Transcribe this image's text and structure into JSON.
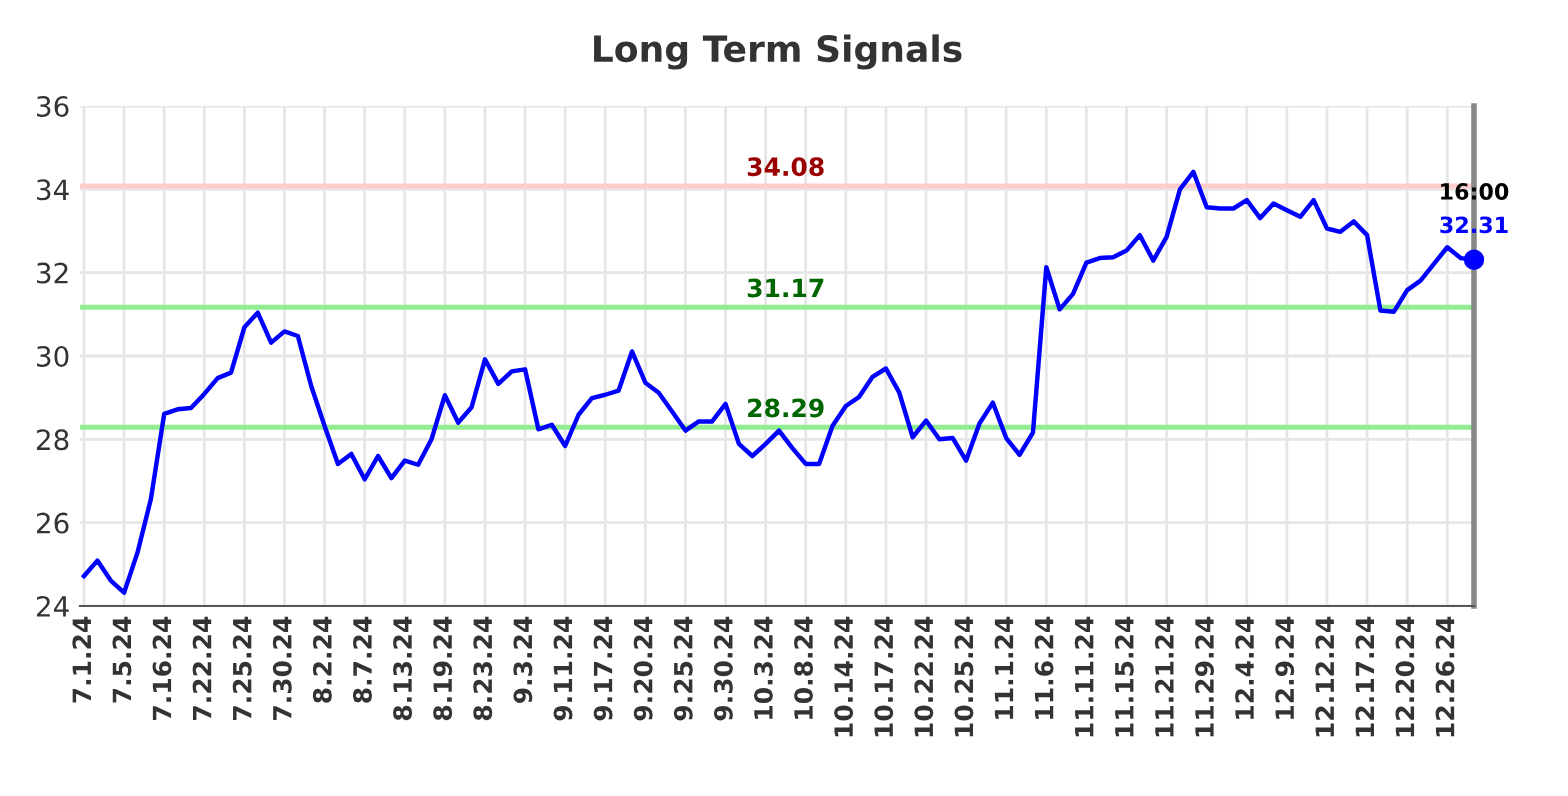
{
  "chart_data": {
    "type": "line",
    "title": "Long Term Signals",
    "categories": [
      "7.1.24",
      null,
      null,
      "7.5.24",
      null,
      null,
      "7.16.24",
      null,
      null,
      "7.22.24",
      null,
      null,
      "7.25.24",
      null,
      null,
      "7.30.24",
      null,
      null,
      "8.2.24",
      null,
      null,
      "8.7.24",
      null,
      null,
      "8.13.24",
      null,
      null,
      "8.19.24",
      null,
      null,
      "8.23.24",
      null,
      null,
      "9.3.24",
      null,
      null,
      "9.11.24",
      null,
      null,
      "9.17.24",
      null,
      null,
      "9.20.24",
      null,
      null,
      "9.25.24",
      null,
      null,
      "9.30.24",
      null,
      null,
      "10.3.24",
      null,
      null,
      "10.8.24",
      null,
      null,
      "10.14.24",
      null,
      null,
      "10.17.24",
      null,
      null,
      "10.22.24",
      null,
      null,
      "10.25.24",
      null,
      null,
      "11.1.24",
      null,
      null,
      "11.6.24",
      null,
      null,
      "11.11.24",
      null,
      null,
      "11.15.24",
      null,
      null,
      "11.21.24",
      null,
      null,
      "11.29.24",
      null,
      null,
      "12.4.24",
      null,
      null,
      "12.9.24",
      null,
      null,
      "12.12.24",
      null,
      null,
      "12.17.24",
      null,
      null,
      "12.20.24",
      null,
      null,
      "12.26.24",
      null,
      null
    ],
    "series": [
      {
        "color": "#0000ff",
        "values": [
          24.72,
          25.09,
          24.61,
          24.32,
          25.28,
          26.56,
          28.61,
          28.72,
          28.75,
          29.09,
          29.47,
          29.6,
          30.69,
          31.04,
          30.32,
          30.59,
          30.48,
          29.28,
          28.32,
          27.41,
          27.65,
          27.04,
          27.6,
          27.07,
          27.49,
          27.39,
          28.0,
          29.06,
          28.4,
          28.77,
          29.92,
          29.33,
          29.63,
          29.68,
          28.24,
          28.35,
          27.84,
          28.59,
          28.99,
          29.07,
          29.17,
          30.11,
          29.36,
          29.12,
          28.67,
          28.21,
          28.43,
          28.43,
          28.85,
          27.89,
          27.6,
          27.89,
          28.21,
          27.79,
          27.41,
          27.41,
          28.32,
          28.8,
          29.02,
          29.5,
          29.7,
          29.12,
          28.05,
          28.45,
          28.0,
          28.03,
          27.49,
          28.38,
          28.88,
          28.03,
          27.63,
          28.16,
          32.13,
          31.12,
          31.49,
          32.24,
          32.35,
          32.37,
          32.53,
          32.9,
          32.29,
          32.86,
          34.0,
          34.42,
          33.57,
          33.54,
          33.54,
          33.74,
          33.31,
          33.66,
          33.5,
          33.34,
          33.74,
          33.06,
          32.98,
          33.23,
          32.9,
          31.09,
          31.06,
          31.58,
          31.81,
          32.21,
          32.61,
          32.35,
          32.31
        ]
      },
      {
        "type": "scatter",
        "color": "#0000ff",
        "marker": "circle",
        "values": [
          null,
          null,
          null,
          null,
          null,
          null,
          null,
          null,
          null,
          null,
          null,
          null,
          null,
          null,
          null,
          null,
          null,
          null,
          null,
          null,
          null,
          null,
          null,
          null,
          null,
          null,
          null,
          null,
          null,
          null,
          null,
          null,
          null,
          null,
          null,
          null,
          null,
          null,
          null,
          null,
          null,
          null,
          null,
          null,
          null,
          null,
          null,
          null,
          null,
          null,
          null,
          null,
          null,
          null,
          null,
          null,
          null,
          null,
          null,
          null,
          null,
          null,
          null,
          null,
          null,
          null,
          null,
          null,
          null,
          null,
          null,
          null,
          null,
          null,
          null,
          null,
          null,
          null,
          null,
          null,
          null,
          null,
          null,
          null,
          null,
          null,
          null,
          null,
          null,
          null,
          null,
          null,
          null,
          null,
          null,
          null,
          null,
          null,
          null,
          null,
          null,
          null,
          null,
          null,
          32.31
        ],
        "value_labels": [
          null,
          null,
          null,
          null,
          null,
          null,
          null,
          null,
          null,
          null,
          null,
          null,
          null,
          null,
          null,
          null,
          null,
          null,
          null,
          null,
          null,
          null,
          null,
          null,
          null,
          null,
          null,
          null,
          null,
          null,
          null,
          null,
          null,
          null,
          null,
          null,
          null,
          null,
          null,
          null,
          null,
          null,
          null,
          null,
          null,
          null,
          null,
          null,
          null,
          null,
          null,
          null,
          null,
          null,
          null,
          null,
          null,
          null,
          null,
          null,
          null,
          null,
          null,
          null,
          null,
          null,
          null,
          null,
          null,
          null,
          null,
          null,
          null,
          null,
          null,
          null,
          null,
          null,
          null,
          null,
          null,
          null,
          null,
          null,
          null,
          null,
          null,
          null,
          null,
          null,
          null,
          null,
          null,
          null,
          null,
          null,
          null,
          null,
          null,
          null,
          null,
          null,
          null,
          null,
          "32.31"
        ]
      }
    ],
    "ref_lines": [
      {
        "axis": "y",
        "value": 34.08,
        "label": "34.08",
        "color": "#ffcccc"
      },
      {
        "axis": "y",
        "value": 31.17,
        "label": "31.17",
        "color": "#90ee90"
      },
      {
        "axis": "y",
        "value": 28.29,
        "label": "28.29",
        "color": "#90ee90"
      }
    ],
    "annotations": [
      "16:00"
    ],
    "ylim": [
      24,
      36
    ],
    "yticks": [
      24,
      26,
      28,
      30,
      32,
      34,
      36
    ],
    "grid": true,
    "legend": false
  }
}
